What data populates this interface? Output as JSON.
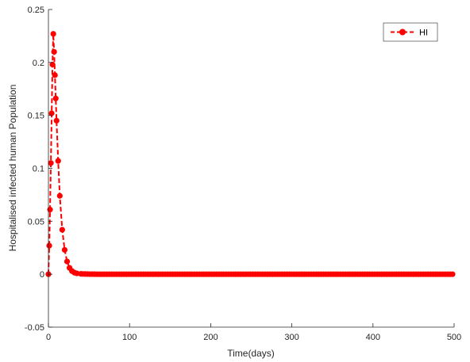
{
  "chart_data": {
    "type": "line",
    "title": "",
    "xlabel": "Time(days)",
    "ylabel": "Hospitalised infected human Population",
    "xlim": [
      0,
      500
    ],
    "ylim": [
      -0.05,
      0.25
    ],
    "xticks": [
      0,
      100,
      200,
      300,
      400,
      500
    ],
    "yticks": [
      -0.05,
      0,
      0.05,
      0.1,
      0.15,
      0.2,
      0.25
    ],
    "xtick_labels": [
      "0",
      "100",
      "200",
      "300",
      "400",
      "500"
    ],
    "ytick_labels": [
      "-0.05",
      "0",
      "0.05",
      "0.1",
      "0.15",
      "0.2",
      "0.25"
    ],
    "grid": false,
    "legend": {
      "position": "top-right",
      "entries": [
        "HI"
      ]
    },
    "series": [
      {
        "name": "HI",
        "color": "#ff0000",
        "line_style": "dashed",
        "marker": "circle",
        "x": [
          0,
          1,
          2,
          3,
          4,
          5,
          6,
          7,
          8,
          9,
          10,
          12,
          14,
          17,
          20,
          23,
          26,
          29,
          32,
          35,
          40,
          50,
          60,
          70,
          80,
          90,
          100,
          120,
          140,
          160,
          180,
          200,
          250,
          300,
          350,
          400,
          450,
          500
        ],
        "y": [
          0.0,
          0.027,
          0.061,
          0.105,
          0.152,
          0.198,
          0.227,
          0.21,
          0.188,
          0.166,
          0.145,
          0.107,
          0.074,
          0.042,
          0.023,
          0.012,
          0.006,
          0.003,
          0.0015,
          0.0008,
          0.0003,
          0.0001,
          0,
          0,
          0,
          0,
          0,
          0,
          0,
          0,
          0,
          0,
          0,
          0,
          0,
          0,
          0,
          0
        ]
      }
    ]
  }
}
